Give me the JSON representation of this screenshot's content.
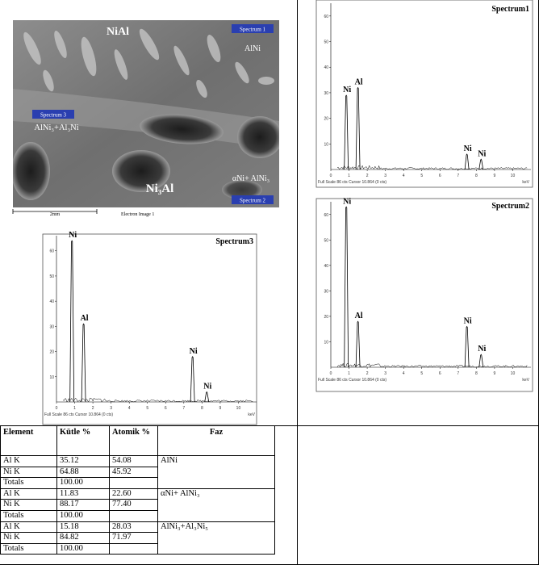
{
  "sem_image": {
    "labels": [
      "NiAl",
      "Spectrum 1",
      "AlNi",
      "Spectrum 3",
      "AlNi₃+Al₃Ni",
      "Ni₃Al",
      "αNi+ AlNi₃",
      "Spectrum 2"
    ],
    "scale_bar": "2mm",
    "caption": "Electron Image 1"
  },
  "spectra": [
    {
      "title": "Spectrum1",
      "xlim": [
        0,
        11
      ],
      "xticks": [
        0,
        1,
        2,
        3,
        4,
        5,
        6,
        7,
        8,
        9,
        10
      ],
      "ylim": [
        0,
        65
      ],
      "yticks": [
        10,
        20,
        30,
        40,
        50,
        60
      ],
      "x_unit": "keV",
      "footer": "Full Scale 86 cts Cursor 10.864 (0 cts)",
      "peaks": [
        {
          "label": "Ni",
          "x": 0.85,
          "y": 29
        },
        {
          "label": "Al",
          "x": 1.49,
          "y": 32
        },
        {
          "label": "Ni",
          "x": 7.48,
          "y": 6
        },
        {
          "label": "Ni",
          "x": 8.26,
          "y": 4
        }
      ]
    },
    {
      "title": "Spectrum2",
      "xlim": [
        0,
        11
      ],
      "xticks": [
        0,
        1,
        2,
        3,
        4,
        5,
        6,
        7,
        8,
        9,
        10
      ],
      "ylim": [
        0,
        65
      ],
      "yticks": [
        10,
        20,
        30,
        40,
        50,
        60
      ],
      "x_unit": "keV",
      "footer": "Full Scale 86 cts Cursor 10.864 (0 cts)",
      "peaks": [
        {
          "label": "Ni",
          "x": 0.85,
          "y": 63
        },
        {
          "label": "Al",
          "x": 1.49,
          "y": 18
        },
        {
          "label": "Ni",
          "x": 7.48,
          "y": 16
        },
        {
          "label": "Ni",
          "x": 8.26,
          "y": 5
        }
      ]
    },
    {
      "title": "Spectrum3",
      "xlim": [
        0,
        11
      ],
      "xticks": [
        0,
        1,
        2,
        3,
        4,
        5,
        6,
        7,
        8,
        9,
        10
      ],
      "ylim": [
        0,
        66
      ],
      "yticks": [
        10,
        20,
        30,
        40,
        50,
        60
      ],
      "x_unit": "keV",
      "footer": "Full Scale 86 cts Cursor 10.864 (0 cts)",
      "peaks": [
        {
          "label": "Ni",
          "x": 0.85,
          "y": 64
        },
        {
          "label": "Al",
          "x": 1.49,
          "y": 31
        },
        {
          "label": "Ni",
          "x": 7.48,
          "y": 18
        },
        {
          "label": "Ni",
          "x": 8.26,
          "y": 4
        }
      ]
    }
  ],
  "table": {
    "header": [
      "Element",
      "Kütle %",
      "Atomik %",
      "Faz"
    ],
    "groups": [
      {
        "faz": "AlNi",
        "rows": [
          [
            "Al K",
            "35.12",
            "54.08"
          ],
          [
            "Ni K",
            "64.88",
            "45.92"
          ],
          [
            "Totals",
            "100.00"
          ]
        ]
      },
      {
        "faz": "αNi+ AlNi₃",
        "rows": [
          [
            "Al K",
            "11.83",
            "22.60"
          ],
          [
            "Ni K",
            "88.17",
            "77.40"
          ],
          [
            "Totals",
            "100.00"
          ]
        ]
      },
      {
        "faz": "AlNi₃+Al₃Ni₅",
        "rows": [
          [
            "Al K",
            "15.18",
            "28.03"
          ],
          [
            "Ni K",
            "84.82",
            "71.97"
          ],
          [
            "Totals",
            "100.00"
          ]
        ]
      }
    ]
  }
}
